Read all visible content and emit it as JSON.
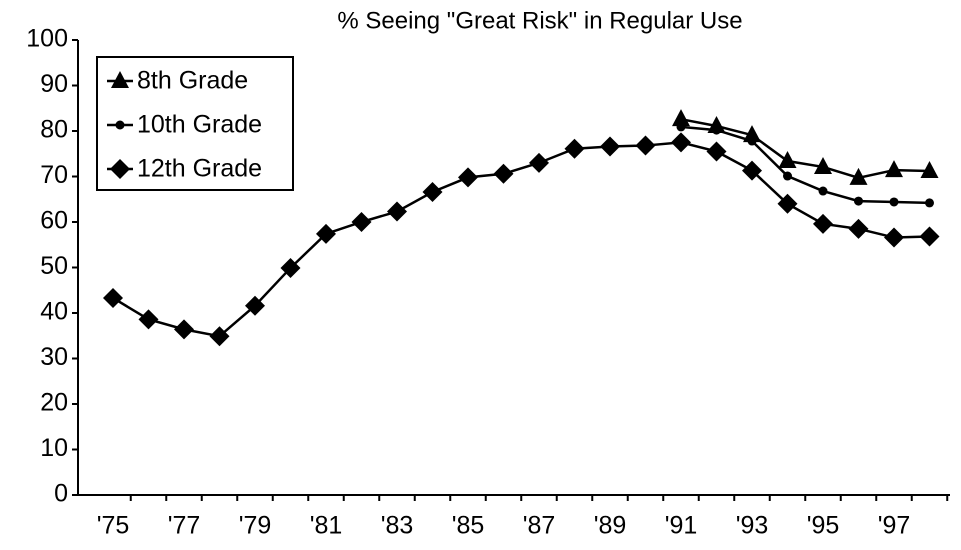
{
  "chart_data": {
    "type": "line",
    "title": "% Seeing \"Great Risk\" in Regular Use",
    "categories": [
      "'75",
      null,
      "'77",
      null,
      "'79",
      null,
      "'81",
      null,
      "'83",
      null,
      "'85",
      null,
      "'87",
      null,
      "'89",
      null,
      "'91",
      null,
      "'93",
      null,
      "'95",
      null,
      "'97",
      null
    ],
    "series": [
      {
        "name": "8th Grade",
        "color": "#000000",
        "marker": "triangle",
        "values": [
          null,
          null,
          null,
          null,
          null,
          null,
          null,
          null,
          null,
          null,
          null,
          null,
          null,
          null,
          null,
          null,
          82.6,
          81.1,
          79.1,
          73.4,
          72.1,
          69.7,
          71.4,
          71.2
        ]
      },
      {
        "name": "10th Grade",
        "color": "#000000",
        "marker": "circle",
        "values": [
          null,
          null,
          null,
          null,
          null,
          null,
          null,
          null,
          null,
          null,
          null,
          null,
          null,
          null,
          null,
          null,
          80.9,
          80.2,
          77.8,
          70.1,
          66.8,
          64.6,
          64.4,
          64.2
        ]
      },
      {
        "name": "12th Grade",
        "color": "#000000",
        "marker": "diamond",
        "values": [
          43.3,
          38.6,
          36.4,
          34.9,
          41.6,
          49.9,
          57.4,
          60.0,
          62.3,
          66.6,
          69.8,
          70.6,
          73.0,
          76.1,
          76.6,
          76.8,
          77.5,
          75.5,
          71.3,
          64.0,
          59.6,
          58.5,
          56.6,
          56.8
        ]
      }
    ],
    "ylim": [
      0,
      100
    ],
    "yticks": [
      0,
      10,
      20,
      30,
      40,
      50,
      60,
      70,
      80,
      90,
      100
    ],
    "grid": false,
    "legend": "upper left"
  }
}
